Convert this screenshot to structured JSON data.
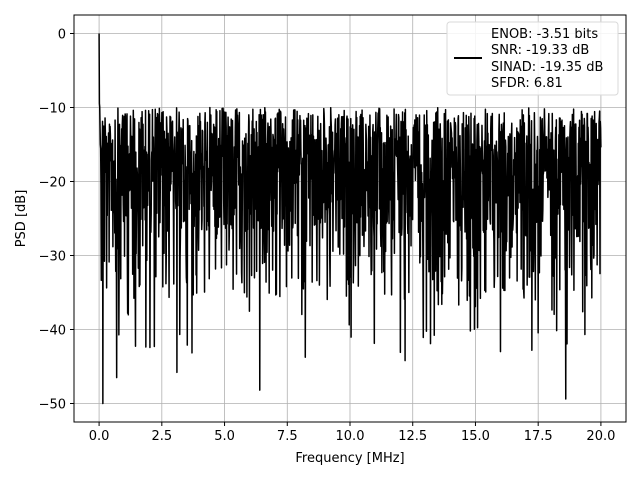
{
  "chart_data": {
    "type": "line",
    "xlabel": "Frequency [MHz]",
    "ylabel": "PSD [dB]",
    "xlim": [
      -1.0,
      21.0
    ],
    "ylim": [
      -52.5,
      2.5
    ],
    "x_ticks": [
      0.0,
      2.5,
      5.0,
      7.5,
      10.0,
      12.5,
      15.0,
      17.5,
      20.0
    ],
    "x_tick_labels": [
      "0.0",
      "2.5",
      "5.0",
      "7.5",
      "10.0",
      "12.5",
      "15.0",
      "17.5",
      "20.0"
    ],
    "y_ticks": [
      0,
      -10,
      -20,
      -30,
      -40,
      -50
    ],
    "y_tick_labels": [
      "0",
      "−10",
      "−20",
      "−30",
      "−40",
      "−50"
    ],
    "grid": true,
    "legend_position": "top-right",
    "series": [
      {
        "name": "ENOB: -3.51 bits\nSNR: -19.33 dB\nSINAD: -19.35 dB\nSFDR: 6.81",
        "color": "#000000",
        "x_range": [
          0.0,
          20.0
        ],
        "peak": {
          "x": 0.0,
          "y": 0.0
        },
        "noise_floor_mean": -21,
        "upper_envelope": [
          -10,
          -11
        ],
        "lower_extremes": [
          {
            "x": 0.15,
            "y": -50.0
          },
          {
            "x": 0.7,
            "y": -46.5
          },
          {
            "x": 3.1,
            "y": -45.8
          },
          {
            "x": 6.4,
            "y": -48.2
          },
          {
            "x": 12.2,
            "y": -44.2
          },
          {
            "x": 18.6,
            "y": -49.4
          }
        ]
      }
    ],
    "legend": {
      "lines": [
        "ENOB: -3.51 bits",
        "SNR: -19.33 dB",
        "SINAD: -19.35 dB",
        "SFDR: 6.81"
      ]
    }
  },
  "colors": {
    "line": "#000000",
    "grid": "#b0b0b0",
    "legend_border": "#d9d9d9"
  }
}
